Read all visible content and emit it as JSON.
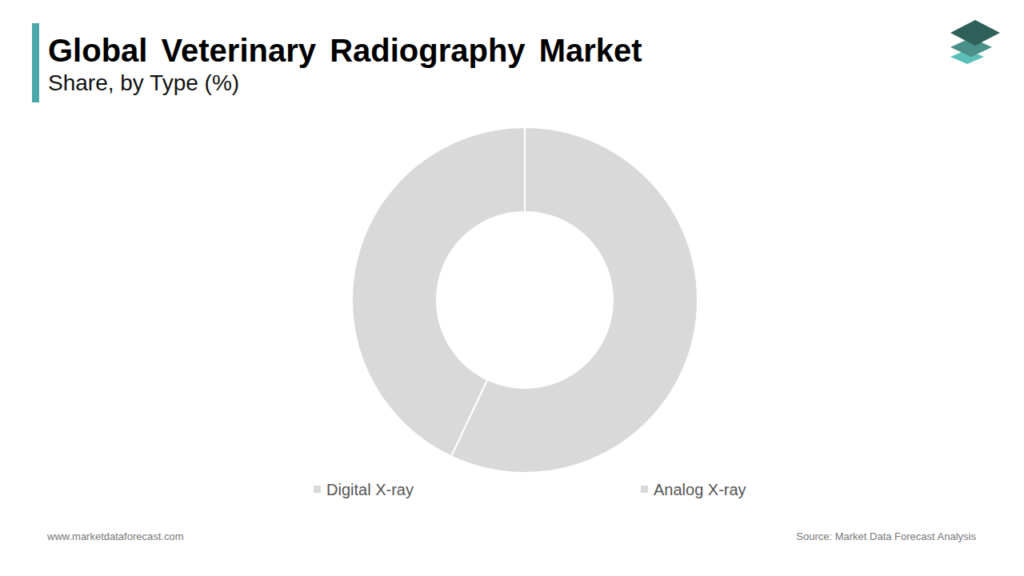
{
  "chart_data": {
    "type": "pie",
    "title": "Global Veterinary Radiography Market",
    "subtitle": "Share, by Type (%)",
    "categories": [
      "Digital X-ray",
      "Analog X-ray"
    ],
    "values": [
      57,
      43
    ],
    "colors": [
      "#d9d9d9",
      "#d9d9d9"
    ],
    "legend": "bottom",
    "data_labels": false,
    "annotations": [
      "www.marketdataforecast.com",
      "Source: Market Data Forecast Analysis"
    ]
  }
}
